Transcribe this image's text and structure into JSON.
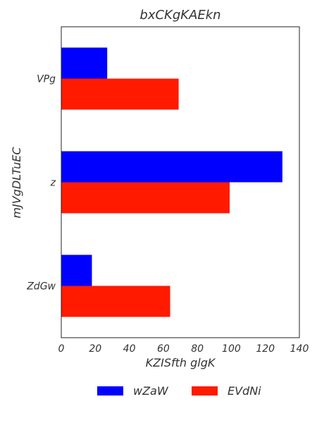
{
  "chart_data": {
    "type": "bar",
    "orientation": "horizontal",
    "title": "bxCKgKAEkn",
    "xlabel": "KZISfth glgK",
    "ylabel": "mJVgDLTuEC",
    "categories": [
      "VPg",
      "z",
      "ZdGw"
    ],
    "series": [
      {
        "name": "wZaW",
        "color": "#0000ff",
        "values": [
          27,
          130,
          18
        ]
      },
      {
        "name": "EVdNi",
        "color": "#ff1a00",
        "values": [
          69,
          99,
          64
        ]
      }
    ],
    "xlim": [
      0,
      140
    ],
    "xticks": [
      "0",
      "20",
      "40",
      "60",
      "80",
      "100",
      "120",
      "140"
    ],
    "grid": false,
    "legend_position": "bottom-center"
  }
}
